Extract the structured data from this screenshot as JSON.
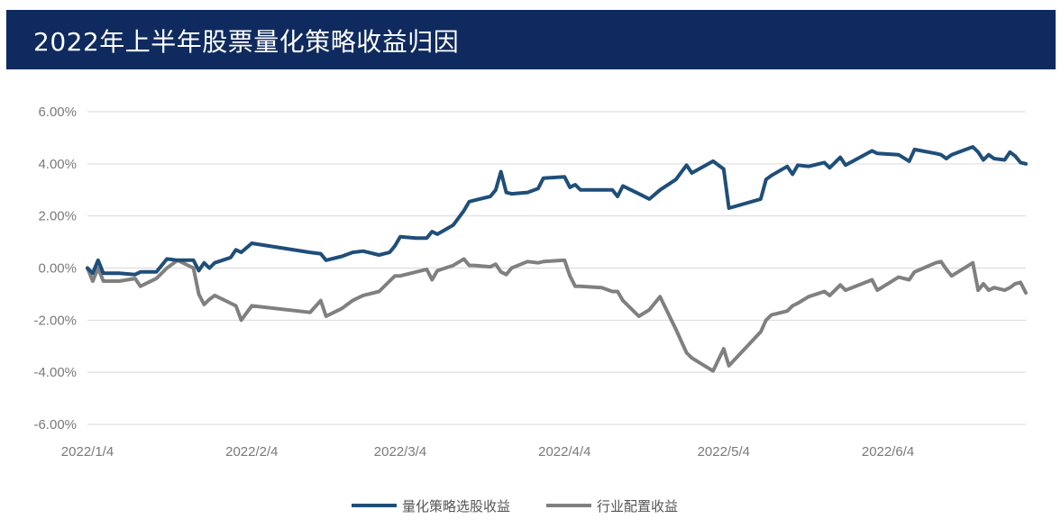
{
  "header": {
    "title": "2022年上半年股票量化策略收益归因"
  },
  "colors": {
    "header_bg": "#0f2a5e",
    "stock_selection": "#1f4e79",
    "industry_allocation": "#808080",
    "grid": "#d9d9d9"
  },
  "chart_data": {
    "type": "line",
    "title": "",
    "xlabel": "",
    "ylabel": "",
    "ylim": [
      -0.06,
      0.06
    ],
    "yticks": [
      0.06,
      0.04,
      0.02,
      0.0,
      -0.02,
      -0.04,
      -0.06
    ],
    "ytick_labels": [
      "6.00%",
      "4.00%",
      "2.00%",
      "0.00%",
      "-2.00%",
      "-4.00%",
      "-6.00%"
    ],
    "xlim": [
      "2022-01-04",
      "2022-06-30"
    ],
    "xticks": [
      "2022-01-04",
      "2022-02-04",
      "2022-03-04",
      "2022-04-04",
      "2022-05-04",
      "2022-06-04"
    ],
    "xtick_labels": [
      "2022/1/4",
      "2022/2/4",
      "2022/3/4",
      "2022/4/4",
      "2022/5/4",
      "2022/6/4"
    ],
    "grid": true,
    "legend_position": "bottom",
    "series": [
      {
        "name": "量化策略选股收益",
        "color": "#1f4e79",
        "points": [
          [
            "2022-01-04",
            0.0
          ],
          [
            "2022-01-05",
            -0.002
          ],
          [
            "2022-01-06",
            0.003
          ],
          [
            "2022-01-07",
            -0.002
          ],
          [
            "2022-01-10",
            -0.002
          ],
          [
            "2022-01-13",
            -0.0025
          ],
          [
            "2022-01-14",
            -0.0015
          ],
          [
            "2022-01-17",
            -0.0015
          ],
          [
            "2022-01-19",
            0.0035
          ],
          [
            "2022-01-21",
            0.003
          ],
          [
            "2022-01-24",
            0.003
          ],
          [
            "2022-01-25",
            -0.001
          ],
          [
            "2022-01-26",
            0.002
          ],
          [
            "2022-01-27",
            0.0
          ],
          [
            "2022-01-28",
            0.002
          ],
          [
            "2022-01-31",
            0.004
          ],
          [
            "2022-02-01",
            0.007
          ],
          [
            "2022-02-02",
            0.006
          ],
          [
            "2022-02-04",
            0.0095
          ],
          [
            "2022-02-15",
            0.006
          ],
          [
            "2022-02-17",
            0.0055
          ],
          [
            "2022-02-18",
            0.003
          ],
          [
            "2022-02-21",
            0.0045
          ],
          [
            "2022-02-23",
            0.006
          ],
          [
            "2022-02-25",
            0.0065
          ],
          [
            "2022-02-28",
            0.005
          ],
          [
            "2022-03-02",
            0.006
          ],
          [
            "2022-03-03",
            0.0085
          ],
          [
            "2022-03-04",
            0.012
          ],
          [
            "2022-03-07",
            0.0115
          ],
          [
            "2022-03-09",
            0.0115
          ],
          [
            "2022-03-10",
            0.014
          ],
          [
            "2022-03-11",
            0.013
          ],
          [
            "2022-03-14",
            0.0165
          ],
          [
            "2022-03-16",
            0.022
          ],
          [
            "2022-03-17",
            0.0255
          ],
          [
            "2022-03-18",
            0.026
          ],
          [
            "2022-03-21",
            0.0275
          ],
          [
            "2022-03-22",
            0.03
          ],
          [
            "2022-03-23",
            0.037
          ],
          [
            "2022-03-24",
            0.029
          ],
          [
            "2022-03-25",
            0.0285
          ],
          [
            "2022-03-28",
            0.029
          ],
          [
            "2022-03-30",
            0.0305
          ],
          [
            "2022-03-31",
            0.0345
          ],
          [
            "2022-04-04",
            0.035
          ],
          [
            "2022-04-05",
            0.031
          ],
          [
            "2022-04-06",
            0.032
          ],
          [
            "2022-04-07",
            0.03
          ],
          [
            "2022-04-11",
            0.03
          ],
          [
            "2022-04-13",
            0.03
          ],
          [
            "2022-04-14",
            0.0275
          ],
          [
            "2022-04-15",
            0.0315
          ],
          [
            "2022-04-18",
            0.0285
          ],
          [
            "2022-04-20",
            0.0265
          ],
          [
            "2022-04-22",
            0.03
          ],
          [
            "2022-04-25",
            0.034
          ],
          [
            "2022-04-27",
            0.0395
          ],
          [
            "2022-04-28",
            0.0365
          ],
          [
            "2022-05-02",
            0.041
          ],
          [
            "2022-05-04",
            0.038
          ],
          [
            "2022-05-05",
            0.023
          ],
          [
            "2022-05-11",
            0.0265
          ],
          [
            "2022-05-12",
            0.034
          ],
          [
            "2022-05-13",
            0.0355
          ],
          [
            "2022-05-16",
            0.039
          ],
          [
            "2022-05-17",
            0.036
          ],
          [
            "2022-05-18",
            0.0395
          ],
          [
            "2022-05-20",
            0.039
          ],
          [
            "2022-05-23",
            0.0405
          ],
          [
            "2022-05-24",
            0.0385
          ],
          [
            "2022-05-26",
            0.0425
          ],
          [
            "2022-05-27",
            0.0395
          ],
          [
            "2022-06-01",
            0.045
          ],
          [
            "2022-06-02",
            0.044
          ],
          [
            "2022-06-06",
            0.0435
          ],
          [
            "2022-06-08",
            0.041
          ],
          [
            "2022-06-09",
            0.0455
          ],
          [
            "2022-06-13",
            0.044
          ],
          [
            "2022-06-14",
            0.0435
          ],
          [
            "2022-06-15",
            0.042
          ],
          [
            "2022-06-16",
            0.0435
          ],
          [
            "2022-06-20",
            0.0465
          ],
          [
            "2022-06-21",
            0.0445
          ],
          [
            "2022-06-22",
            0.0415
          ],
          [
            "2022-06-23",
            0.0435
          ],
          [
            "2022-06-24",
            0.042
          ],
          [
            "2022-06-26",
            0.0415
          ],
          [
            "2022-06-27",
            0.0445
          ],
          [
            "2022-06-28",
            0.043
          ],
          [
            "2022-06-29",
            0.0405
          ],
          [
            "2022-06-30",
            0.04
          ]
        ]
      },
      {
        "name": "行业配置收益",
        "color": "#808080",
        "points": [
          [
            "2022-01-04",
            0.0
          ],
          [
            "2022-01-05",
            -0.005
          ],
          [
            "2022-01-06",
            0.0
          ],
          [
            "2022-01-07",
            -0.005
          ],
          [
            "2022-01-10",
            -0.005
          ],
          [
            "2022-01-13",
            -0.004
          ],
          [
            "2022-01-14",
            -0.007
          ],
          [
            "2022-01-17",
            -0.004
          ],
          [
            "2022-01-19",
            0.0
          ],
          [
            "2022-01-21",
            0.003
          ],
          [
            "2022-01-24",
            0.0
          ],
          [
            "2022-01-25",
            -0.01
          ],
          [
            "2022-01-26",
            -0.014
          ],
          [
            "2022-01-27",
            -0.012
          ],
          [
            "2022-01-28",
            -0.0105
          ],
          [
            "2022-01-31",
            -0.0135
          ],
          [
            "2022-02-01",
            -0.0145
          ],
          [
            "2022-02-02",
            -0.02
          ],
          [
            "2022-02-04",
            -0.0145
          ],
          [
            "2022-02-15",
            -0.017
          ],
          [
            "2022-02-17",
            -0.0125
          ],
          [
            "2022-02-18",
            -0.0185
          ],
          [
            "2022-02-21",
            -0.0155
          ],
          [
            "2022-02-23",
            -0.0125
          ],
          [
            "2022-02-25",
            -0.0105
          ],
          [
            "2022-02-28",
            -0.009
          ],
          [
            "2022-03-02",
            -0.005
          ],
          [
            "2022-03-03",
            -0.003
          ],
          [
            "2022-03-04",
            -0.003
          ],
          [
            "2022-03-07",
            -0.0015
          ],
          [
            "2022-03-09",
            -0.0005
          ],
          [
            "2022-03-10",
            -0.0045
          ],
          [
            "2022-03-11",
            -0.001
          ],
          [
            "2022-03-14",
            0.001
          ],
          [
            "2022-03-16",
            0.0035
          ],
          [
            "2022-03-17",
            0.001
          ],
          [
            "2022-03-18",
            0.001
          ],
          [
            "2022-03-21",
            0.0005
          ],
          [
            "2022-03-22",
            0.0015
          ],
          [
            "2022-03-23",
            -0.0015
          ],
          [
            "2022-03-24",
            -0.0025
          ],
          [
            "2022-03-25",
            0.0
          ],
          [
            "2022-03-28",
            0.0025
          ],
          [
            "2022-03-30",
            0.002
          ],
          [
            "2022-03-31",
            0.0025
          ],
          [
            "2022-04-04",
            0.003
          ],
          [
            "2022-04-05",
            -0.003
          ],
          [
            "2022-04-06",
            -0.007
          ],
          [
            "2022-04-07",
            -0.007
          ],
          [
            "2022-04-11",
            -0.0075
          ],
          [
            "2022-04-13",
            -0.009
          ],
          [
            "2022-04-14",
            -0.009
          ],
          [
            "2022-04-15",
            -0.0125
          ],
          [
            "2022-04-18",
            -0.0185
          ],
          [
            "2022-04-20",
            -0.016
          ],
          [
            "2022-04-22",
            -0.011
          ],
          [
            "2022-04-25",
            -0.0235
          ],
          [
            "2022-04-27",
            -0.0325
          ],
          [
            "2022-04-28",
            -0.0345
          ],
          [
            "2022-05-02",
            -0.0395
          ],
          [
            "2022-05-04",
            -0.031
          ],
          [
            "2022-05-05",
            -0.0375
          ],
          [
            "2022-05-11",
            -0.0245
          ],
          [
            "2022-05-12",
            -0.02
          ],
          [
            "2022-05-13",
            -0.018
          ],
          [
            "2022-05-16",
            -0.0165
          ],
          [
            "2022-05-17",
            -0.0145
          ],
          [
            "2022-05-18",
            -0.0135
          ],
          [
            "2022-05-20",
            -0.011
          ],
          [
            "2022-05-23",
            -0.009
          ],
          [
            "2022-05-24",
            -0.0105
          ],
          [
            "2022-05-26",
            -0.0065
          ],
          [
            "2022-05-27",
            -0.0085
          ],
          [
            "2022-06-01",
            -0.0045
          ],
          [
            "2022-06-02",
            -0.0085
          ],
          [
            "2022-06-06",
            -0.0035
          ],
          [
            "2022-06-08",
            -0.0045
          ],
          [
            "2022-06-09",
            -0.0015
          ],
          [
            "2022-06-13",
            0.002
          ],
          [
            "2022-06-14",
            0.0025
          ],
          [
            "2022-06-15",
            -0.0005
          ],
          [
            "2022-06-16",
            -0.003
          ],
          [
            "2022-06-20",
            0.002
          ],
          [
            "2022-06-21",
            -0.0085
          ],
          [
            "2022-06-22",
            -0.006
          ],
          [
            "2022-06-23",
            -0.0085
          ],
          [
            "2022-06-24",
            -0.0075
          ],
          [
            "2022-06-26",
            -0.0085
          ],
          [
            "2022-06-27",
            -0.0075
          ],
          [
            "2022-06-28",
            -0.006
          ],
          [
            "2022-06-29",
            -0.0055
          ],
          [
            "2022-06-30",
            -0.0095
          ]
        ]
      }
    ]
  }
}
